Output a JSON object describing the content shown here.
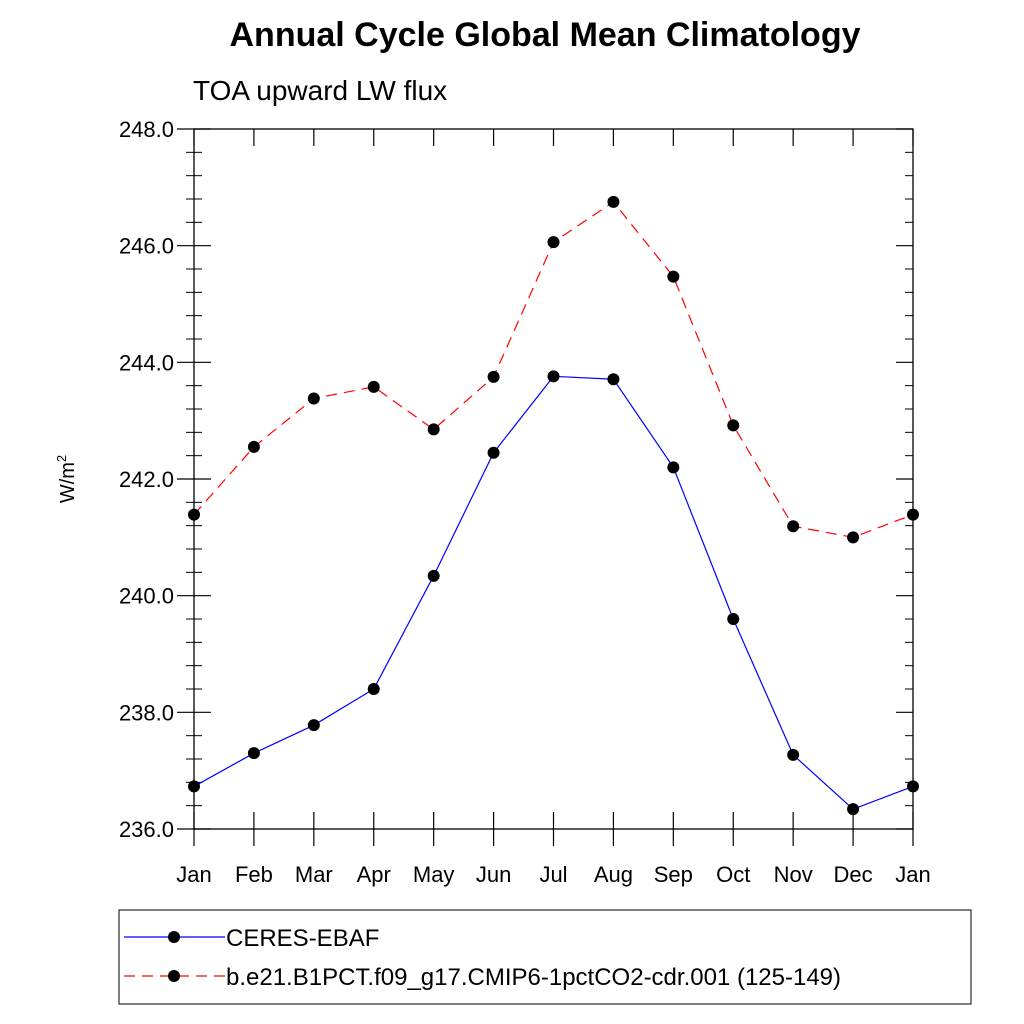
{
  "chart_data": {
    "type": "line",
    "title": "Annual Cycle Global Mean Climatology",
    "subtitle": "TOA upward LW flux",
    "ylabel": "W/m",
    "ylabel_superscript": "2",
    "categories": [
      "Jan",
      "Feb",
      "Mar",
      "Apr",
      "May",
      "Jun",
      "Jul",
      "Aug",
      "Sep",
      "Oct",
      "Nov",
      "Dec",
      "Jan"
    ],
    "ylim": [
      236.0,
      248.0
    ],
    "yticks": [
      "236.0",
      "238.0",
      "240.0",
      "242.0",
      "244.0",
      "246.0",
      "248.0"
    ],
    "grid": false,
    "legend_position": "bottom",
    "series": [
      {
        "name": "CERES-EBAF",
        "color": "#0000ff",
        "line_style": "solid",
        "marker": "filled-circle",
        "values": [
          236.73,
          237.3,
          237.78,
          238.4,
          240.34,
          242.45,
          243.76,
          243.71,
          242.2,
          239.6,
          237.27,
          236.34,
          236.73
        ]
      },
      {
        "name": "b.e21.B1PCT.f09_g17.CMIP6-1pctCO2-cdr.001 (125-149)",
        "color": "#ff0000",
        "line_style": "dashed",
        "marker": "filled-circle",
        "values": [
          241.39,
          242.55,
          243.38,
          243.58,
          242.85,
          243.75,
          246.06,
          246.75,
          245.47,
          242.92,
          241.19,
          241.0,
          241.39
        ]
      }
    ]
  }
}
